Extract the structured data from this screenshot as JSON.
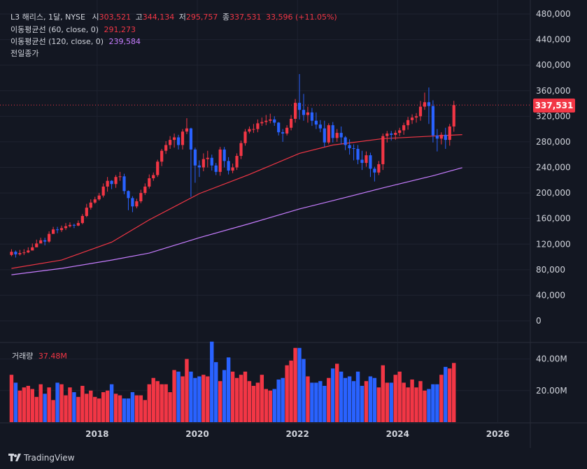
{
  "header": {
    "title_line": "L3 해리스, 1달, NYSE",
    "open_label": "시",
    "open": "303,521",
    "high_label": "고",
    "high": "344,134",
    "low_label": "저",
    "low": "295,757",
    "close_label": "종",
    "close": "337,531",
    "change": "33,596 (+11.05%)"
  },
  "indicators": {
    "ma60_label": "이동평균선 (60, close, 0)",
    "ma60_value": "291,273",
    "ma120_label": "이동평균선 (120, close, 0)",
    "ma120_value": "239,584",
    "prev_close_label": "전일종가"
  },
  "volume": {
    "label": "거래량",
    "value": "37.48M"
  },
  "last_price_tag": "337,531",
  "footer": {
    "brand": "TradingView"
  },
  "colors": {
    "up": "#f23645",
    "down": "#2962ff",
    "ma60": "#f23645",
    "ma120": "#c77dff",
    "bg": "#131722"
  },
  "chart_data": {
    "type": "candlestick",
    "interval": "1M",
    "price_axis": {
      "ticks": [
        "0",
        "40,000",
        "80,000",
        "120,000",
        "160,000",
        "200,000",
        "240,000",
        "280,000",
        "320,000",
        "360,000",
        "400,000",
        "440,000",
        "480,000"
      ],
      "ylim": [
        0,
        480000
      ]
    },
    "volume_axis": {
      "ticks": [
        "20.00M",
        "40.00M"
      ],
      "ylim": [
        0,
        50
      ]
    },
    "x_axis": {
      "ticks": [
        "2018",
        "2020",
        "2022",
        "2024",
        "2026"
      ],
      "xlim": [
        2016.2,
        2026.65
      ]
    },
    "start": [
      2016,
      4
    ],
    "closes": [
      108000,
      104000,
      106000,
      107000,
      110000,
      115000,
      121000,
      126000,
      124000,
      136000,
      143000,
      142000,
      145000,
      148000,
      150000,
      149000,
      153000,
      164000,
      177000,
      185000,
      190000,
      196000,
      210000,
      219000,
      214000,
      225000,
      226000,
      203000,
      192000,
      179000,
      187000,
      200000,
      210000,
      223000,
      228000,
      249000,
      266000,
      275000,
      283000,
      287000,
      275000,
      296000,
      301000,
      268000,
      243000,
      240000,
      253000,
      255000,
      243000,
      233000,
      268000,
      250000,
      235000,
      240000,
      258000,
      278000,
      296000,
      300000,
      300000,
      309000,
      311000,
      313000,
      315000,
      310000,
      295000,
      293000,
      302000,
      316000,
      341000,
      330000,
      322000,
      326000,
      313000,
      307000,
      301000,
      279000,
      306000,
      286000,
      294000,
      287000,
      275000,
      270000,
      269000,
      252000,
      247000,
      259000,
      238000,
      232000,
      245000,
      289000,
      293000,
      291000,
      294000,
      298000,
      306000,
      314000,
      318000,
      320000,
      335000,
      342000,
      336000,
      290000,
      285000,
      291000,
      283000,
      304000,
      337531
    ],
    "highs": [
      112000,
      110000,
      111000,
      112000,
      115000,
      121000,
      127000,
      130000,
      130000,
      140000,
      147000,
      147000,
      149000,
      153000,
      154000,
      152000,
      157000,
      167000,
      183000,
      190000,
      194000,
      200000,
      215000,
      225000,
      220000,
      228000,
      233000,
      230000,
      204000,
      195000,
      191000,
      205000,
      215000,
      229000,
      232000,
      252000,
      269000,
      281000,
      289000,
      293000,
      291000,
      300000,
      317000,
      302000,
      271000,
      251000,
      262000,
      266000,
      260000,
      247000,
      272000,
      272000,
      256000,
      246000,
      262000,
      282000,
      300000,
      304000,
      308000,
      315000,
      318000,
      322000,
      324000,
      320000,
      311000,
      300000,
      306000,
      322000,
      347000,
      386000,
      355000,
      335000,
      333000,
      326000,
      314000,
      313000,
      309000,
      311000,
      300000,
      304000,
      289000,
      284000,
      276000,
      275000,
      266000,
      265000,
      263000,
      241000,
      250000,
      293000,
      297000,
      297000,
      298000,
      302000,
      310000,
      319000,
      323000,
      325000,
      344000,
      357000,
      365000,
      345000,
      300000,
      295000,
      302000,
      308000,
      344134
    ],
    "lows": [
      101000,
      99000,
      102000,
      103000,
      106000,
      111000,
      116000,
      122000,
      118000,
      122000,
      139000,
      137000,
      139000,
      142000,
      146000,
      145000,
      148000,
      151000,
      162000,
      174000,
      183000,
      188000,
      193000,
      202000,
      206000,
      208000,
      219000,
      198000,
      173000,
      170000,
      176000,
      184000,
      197000,
      207000,
      219000,
      225000,
      242000,
      261000,
      269000,
      271000,
      268000,
      268000,
      292000,
      194000,
      216000,
      225000,
      234000,
      240000,
      235000,
      228000,
      227000,
      240000,
      229000,
      231000,
      236000,
      253000,
      274000,
      293000,
      294000,
      295000,
      305000,
      306000,
      309000,
      305000,
      290000,
      280000,
      290000,
      298000,
      310000,
      315000,
      313000,
      310000,
      305000,
      300000,
      295000,
      272000,
      276000,
      279000,
      280000,
      276000,
      267000,
      260000,
      251000,
      245000,
      236000,
      241000,
      225000,
      218000,
      228000,
      236000,
      279000,
      282000,
      283000,
      289000,
      291000,
      299000,
      308000,
      310000,
      313000,
      330000,
      308000,
      279000,
      265000,
      276000,
      269000,
      274000,
      295757
    ],
    "ma60": [
      {
        "date": "2016-04",
        "value": 82000
      },
      {
        "date": "2017-04",
        "value": 95000
      },
      {
        "date": "2018-04",
        "value": 123000
      },
      {
        "date": "2019-01",
        "value": 158000
      },
      {
        "date": "2020-01",
        "value": 199000
      },
      {
        "date": "2021-01",
        "value": 229000
      },
      {
        "date": "2022-01",
        "value": 262000
      },
      {
        "date": "2022-09",
        "value": 275000
      },
      {
        "date": "2023-09",
        "value": 285000
      },
      {
        "date": "2024-09",
        "value": 289000
      },
      {
        "date": "2025-04",
        "value": 291273
      }
    ],
    "ma120": [
      {
        "date": "2016-04",
        "value": 72000
      },
      {
        "date": "2017-04",
        "value": 82000
      },
      {
        "date": "2018-04",
        "value": 95000
      },
      {
        "date": "2019-01",
        "value": 106000
      },
      {
        "date": "2020-01",
        "value": 130000
      },
      {
        "date": "2021-01",
        "value": 152000
      },
      {
        "date": "2022-01",
        "value": 175000
      },
      {
        "date": "2022-09",
        "value": 188000
      },
      {
        "date": "2023-09",
        "value": 208000
      },
      {
        "date": "2024-09",
        "value": 227000
      },
      {
        "date": "2025-04",
        "value": 239584
      }
    ],
    "volume_millions": [
      30,
      25,
      20,
      22,
      23,
      21,
      16,
      24,
      18,
      22,
      14,
      25,
      24,
      17,
      22,
      19,
      16,
      23,
      18,
      20,
      16,
      15,
      19,
      20,
      24,
      18,
      17,
      15,
      15,
      19,
      17,
      17,
      14,
      24,
      28,
      26,
      24,
      24,
      19,
      33,
      32,
      29,
      40,
      32,
      28,
      29,
      30,
      29,
      51,
      38,
      26,
      33,
      41,
      32,
      28,
      30,
      32,
      26,
      23,
      25,
      30,
      21,
      20,
      21,
      27,
      28,
      36,
      39,
      47,
      47,
      40,
      29,
      25,
      25,
      26,
      23,
      28,
      34,
      37,
      32,
      28,
      29,
      26,
      32,
      23,
      26,
      29,
      28,
      22,
      36,
      25,
      25,
      30,
      32,
      25,
      22,
      27,
      22,
      26,
      20,
      21,
      24,
      24,
      30,
      35,
      34,
      37.48
    ]
  }
}
